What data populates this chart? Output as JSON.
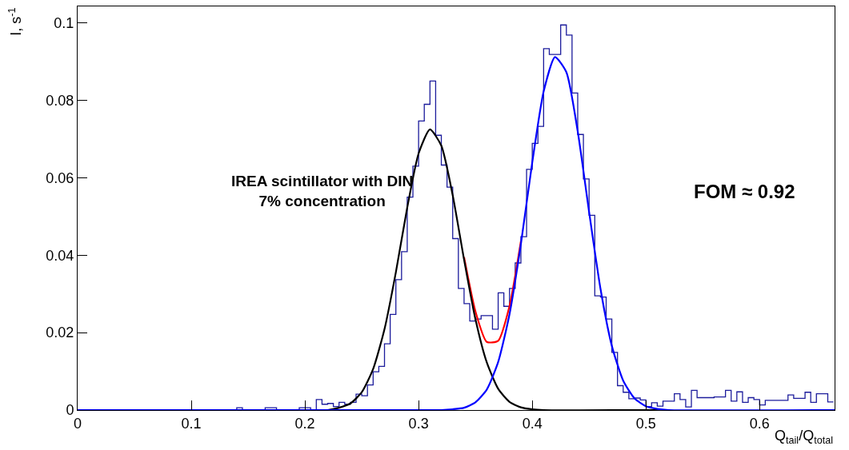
{
  "chart_data": {
    "type": "histogram",
    "xlabel": "Q$_{tail}$/Q$_{total}$",
    "ylabel": "I, s$^{-1}$",
    "annotations": [
      "IREA scintillator with DIN\n7% concentration",
      "FOM ≈ 0.92"
    ],
    "bins": [
      0,
      0.005,
      0.01,
      0.015,
      0.02,
      0.025,
      0.03,
      0.035,
      0.04,
      0.045,
      0.05,
      0.055,
      0.06,
      0.065,
      0.07,
      0.075,
      0.08,
      0.085,
      0.09,
      0.095,
      0.1,
      0.105,
      0.11,
      0.115,
      0.12,
      0.125,
      0.13,
      0.135,
      0.14,
      0.145,
      0.15,
      0.155,
      0.16,
      0.165,
      0.17,
      0.175,
      0.18,
      0.185,
      0.19,
      0.195,
      0.2,
      0.205,
      0.21,
      0.215,
      0.22,
      0.225,
      0.23,
      0.235,
      0.24,
      0.245,
      0.25,
      0.255,
      0.26,
      0.265,
      0.27,
      0.275,
      0.28,
      0.285,
      0.29,
      0.295,
      0.3,
      0.305,
      0.31,
      0.315,
      0.32,
      0.325,
      0.33,
      0.335,
      0.34,
      0.345,
      0.35,
      0.355,
      0.36,
      0.365,
      0.37,
      0.375,
      0.38,
      0.385,
      0.39,
      0.395,
      0.4,
      0.405,
      0.41,
      0.415,
      0.42,
      0.425,
      0.43,
      0.435,
      0.44,
      0.445,
      0.45,
      0.455,
      0.46,
      0.465,
      0.47,
      0.475,
      0.48,
      0.485,
      0.49,
      0.495,
      0.5,
      0.505,
      0.51,
      0.515,
      0.52,
      0.525,
      0.53,
      0.535,
      0.54,
      0.545,
      0.55,
      0.555,
      0.56,
      0.565,
      0.57,
      0.575,
      0.58,
      0.585,
      0.59,
      0.595,
      0.6,
      0.605,
      0.61,
      0.615,
      0.62,
      0.625,
      0.63,
      0.635,
      0.64,
      0.645,
      0.65,
      0.655,
      0.66,
      0.665
    ],
    "values": [
      0,
      0,
      0,
      0,
      0,
      0,
      0,
      0,
      0,
      0,
      0,
      0,
      0,
      0,
      0,
      0,
      0,
      0,
      0,
      0,
      0,
      0,
      0,
      0,
      0,
      0,
      0,
      0,
      0.0006,
      0,
      0,
      0,
      0,
      0.0006,
      0.0006,
      0,
      0,
      0,
      0,
      0.0006,
      0.0006,
      0,
      0.0027,
      0.0015,
      0.0017,
      0.0009,
      0.002,
      0.0015,
      0.002,
      0.0041,
      0.0037,
      0.0065,
      0.0099,
      0.0113,
      0.0171,
      0.0247,
      0.0337,
      0.0409,
      0.055,
      0.063,
      0.0747,
      0.079,
      0.085,
      0.071,
      0.0633,
      0.0576,
      0.0443,
      0.0314,
      0.0275,
      0.023,
      0.0235,
      0.0244,
      0.0244,
      0.0209,
      0.0303,
      0.0268,
      0.0314,
      0.038,
      0.0448,
      0.0622,
      0.0689,
      0.0733,
      0.0934,
      0.0919,
      0.0919,
      0.0995,
      0.0969,
      0.0819,
      0.0712,
      0.0597,
      0.0503,
      0.0295,
      0.0292,
      0.0235,
      0.0149,
      0.0063,
      0.0046,
      0.0029,
      0.0031,
      0.0026,
      0.0009,
      0.0019,
      0.001,
      0.0023,
      0.0023,
      0.0042,
      0.0027,
      0.0008,
      0.0051,
      0.0032,
      0.0032,
      0.0032,
      0.0034,
      0.0034,
      0.0051,
      0.0023,
      0.0047,
      0.002,
      0.0032,
      0.0027,
      0.0013,
      0.0025,
      0.0025,
      0.0025,
      0.0025,
      0.0039,
      0.003,
      0.003,
      0.0046,
      0.002,
      0.0042,
      0.0042,
      0.0021
    ],
    "color": "#1c1c9c",
    "series": [
      {
        "type": "line",
        "color": "#ff0000",
        "x": [
          0.34,
          0.35,
          0.36,
          0.37,
          0.38,
          0.39
        ],
        "values": [
          0.0395,
          0.0255,
          0.0176,
          0.0179,
          0.0269,
          0.0436
        ]
      },
      {
        "type": "line",
        "color": "#000000",
        "x": [
          0,
          0.22,
          0.23,
          0.24,
          0.25,
          0.26,
          0.27,
          0.28,
          0.29,
          0.3,
          0.31,
          0.32,
          0.33,
          0.34,
          0.35,
          0.36,
          0.37,
          0.38,
          0.39,
          0.4,
          0.41,
          0.52
        ],
        "values": [
          0,
          0,
          0.0006,
          0.0017,
          0.0046,
          0.0106,
          0.0209,
          0.0356,
          0.0523,
          0.0663,
          0.0725,
          0.0683,
          0.0555,
          0.0389,
          0.0235,
          0.0123,
          0.0055,
          0.0021,
          0.0007,
          0.0002,
          0,
          0
        ]
      },
      {
        "type": "line",
        "color": "#0000ff",
        "x": [
          0,
          0.32,
          0.33,
          0.34,
          0.35,
          0.36,
          0.37,
          0.38,
          0.39,
          0.4,
          0.41,
          0.42,
          0.43,
          0.44,
          0.45,
          0.46,
          0.47,
          0.48,
          0.49,
          0.5,
          0.51,
          0.52,
          0.666
        ],
        "values": [
          0,
          0,
          0.0002,
          0.0006,
          0.002,
          0.0053,
          0.0124,
          0.0248,
          0.0429,
          0.064,
          0.0823,
          0.0912,
          0.0873,
          0.072,
          0.0512,
          0.0314,
          0.0166,
          0.0076,
          0.003,
          0.001,
          0.0003,
          0,
          0
        ]
      }
    ],
    "xlim": [
      0,
      0.666
    ],
    "ylim": [
      0,
      0.1043
    ],
    "xticks": [
      0,
      0.1,
      0.2,
      0.3,
      0.4,
      0.5,
      0.6
    ],
    "yticks": [
      0,
      0.02,
      0.04,
      0.06,
      0.08,
      0.1
    ]
  }
}
